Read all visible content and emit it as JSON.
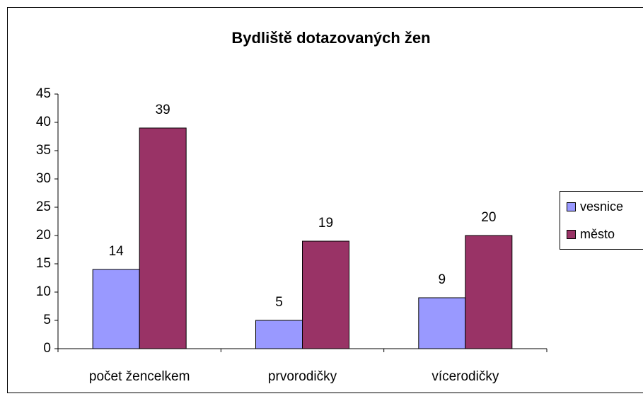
{
  "chart_data": {
    "type": "bar",
    "title": "Bydliště dotazovaných žen",
    "categories": [
      "počet žencelkem",
      "prvorodičky",
      "vícerodičky"
    ],
    "series": [
      {
        "name": "vesnice",
        "color": "#9999ff",
        "values": [
          14,
          5,
          9
        ]
      },
      {
        "name": "město",
        "color": "#993366",
        "values": [
          39,
          19,
          20
        ]
      }
    ],
    "ylim": [
      0,
      45
    ],
    "yticks": [
      0,
      5,
      10,
      15,
      20,
      25,
      30,
      35,
      40,
      45
    ],
    "grid": false,
    "legend": "right",
    "data_labels": true
  }
}
